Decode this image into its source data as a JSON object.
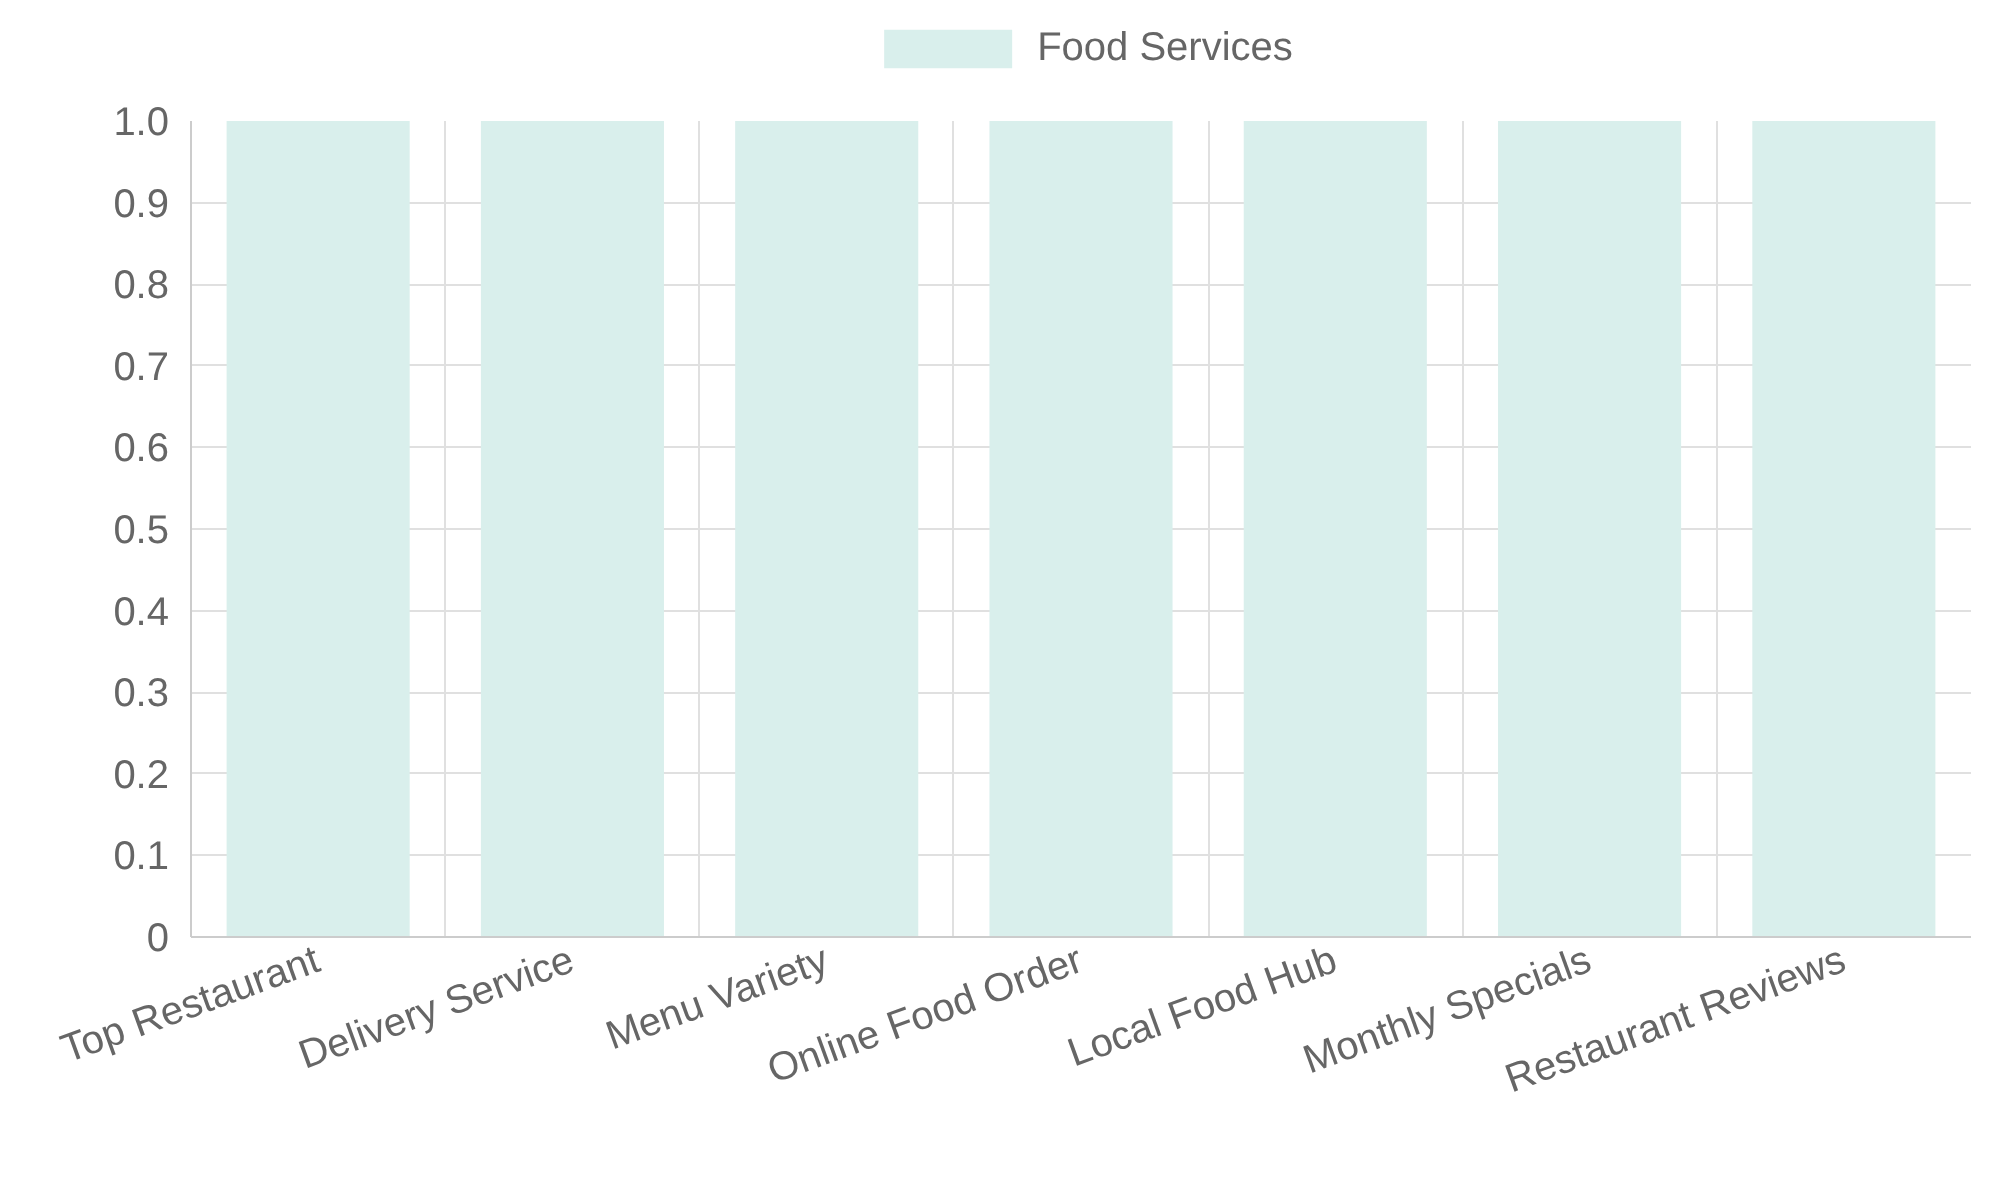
{
  "chart_data": {
    "type": "bar",
    "categories": [
      "Top Restaurant",
      "Delivery Service",
      "Menu Variety",
      "Online Food Order",
      "Local Food Hub",
      "Monthly Specials",
      "Restaurant Reviews"
    ],
    "series": [
      {
        "name": "Food Services",
        "color": "#d9efec",
        "values": [
          1.0,
          1.0,
          1.0,
          1.0,
          1.0,
          1.0,
          1.0
        ]
      }
    ],
    "ylim": [
      0,
      1.0
    ],
    "yticks": [
      0,
      {
        "value": 0.1,
        "label": "0.1"
      },
      {
        "value": 0.2,
        "label": "0.2"
      },
      {
        "value": 0.3,
        "label": "0.3"
      },
      {
        "value": 0.4,
        "label": "0.4"
      },
      {
        "value": 0.5,
        "label": "0.5"
      },
      {
        "value": 0.6,
        "label": "0.6"
      },
      {
        "value": 0.7,
        "label": "0.7"
      },
      {
        "value": 0.8,
        "label": "0.8"
      },
      {
        "value": 0.9,
        "label": "0.9"
      },
      {
        "value": 1.0,
        "label": "1.0"
      }
    ],
    "grid": true,
    "legend": "top"
  }
}
